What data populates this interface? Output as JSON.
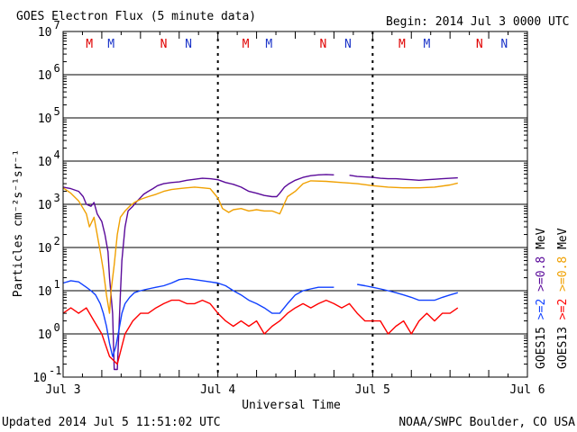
{
  "header": {
    "title": "GOES Electron Flux (5 minute data)",
    "begin": "Begin: 2014 Jul 3 0000 UTC"
  },
  "footer": {
    "updated": "Updated 2014 Jul  5 11:51:02 UTC",
    "credit": "NOAA/SWPC Boulder, CO USA"
  },
  "colors": {
    "goes15_08": "#5a0a9a",
    "goes13_08": "#f0a000",
    "goes15_2": "#1040ff",
    "goes13_2": "#ff0000",
    "marker_m": "#1a33c8",
    "marker_m_red": "#e00000"
  },
  "chart_data": {
    "type": "line",
    "title": "GOES Electron Flux (5 minute data)",
    "xlabel": "Universal Time",
    "ylabel": "Particles cm⁻²s⁻¹sr⁻¹",
    "x_unit": "days since 2014 Jul 3 0000 UTC",
    "xlim": [
      0,
      3
    ],
    "ylim": [
      0.1,
      10000000
    ],
    "yscale": "log",
    "x_ticks": [
      {
        "x": 0,
        "label": "Jul 3"
      },
      {
        "x": 1,
        "label": "Jul 4"
      },
      {
        "x": 2,
        "label": "Jul 5"
      },
      {
        "x": 3,
        "label": "Jul 6"
      }
    ],
    "y_ticks": [
      {
        "exp": -1,
        "label": "10",
        "sup": "-1"
      },
      {
        "exp": 0,
        "label": "10",
        "sup": "0"
      },
      {
        "exp": 1,
        "label": "10",
        "sup": "1"
      },
      {
        "exp": 2,
        "label": "10",
        "sup": "2"
      },
      {
        "exp": 3,
        "label": "10",
        "sup": "3"
      },
      {
        "exp": 4,
        "label": "10",
        "sup": "4"
      },
      {
        "exp": 5,
        "label": "10",
        "sup": "5"
      },
      {
        "exp": 6,
        "label": "10",
        "sup": "6"
      },
      {
        "exp": 7,
        "label": "10",
        "sup": "7"
      }
    ],
    "threshold": 1000,
    "markers": [
      {
        "x": 0.17,
        "label": "M",
        "color": "red"
      },
      {
        "x": 0.31,
        "label": "M",
        "color": "blue"
      },
      {
        "x": 0.65,
        "label": "N",
        "color": "red"
      },
      {
        "x": 0.81,
        "label": "N",
        "color": "blue"
      },
      {
        "x": 1.18,
        "label": "M",
        "color": "red"
      },
      {
        "x": 1.33,
        "label": "M",
        "color": "blue"
      },
      {
        "x": 1.68,
        "label": "N",
        "color": "red"
      },
      {
        "x": 1.84,
        "label": "N",
        "color": "blue"
      },
      {
        "x": 2.19,
        "label": "M",
        "color": "red"
      },
      {
        "x": 2.35,
        "label": "M",
        "color": "blue"
      },
      {
        "x": 2.69,
        "label": "N",
        "color": "red"
      },
      {
        "x": 2.85,
        "label": "N",
        "color": "blue"
      }
    ],
    "legend": [
      {
        "text": "GOES15",
        "color": "#000000"
      },
      {
        "text": ">=2",
        "color": "#1040ff"
      },
      {
        "text": ">=0.8",
        "color": "#5a0a9a"
      },
      {
        "text": "MeV",
        "color": "#000000"
      },
      {
        "text": "GOES13",
        "color": "#000000"
      },
      {
        "text": ">=2",
        "color": "#ff0000"
      },
      {
        "text": ">=0.8",
        "color": "#f0a000"
      },
      {
        "text": "MeV",
        "color": "#000000"
      }
    ],
    "series": [
      {
        "name": "GOES15 >=0.8 MeV",
        "color": "#5a0a9a",
        "x": [
          0.0,
          0.05,
          0.1,
          0.13,
          0.15,
          0.18,
          0.2,
          0.22,
          0.25,
          0.27,
          0.29,
          0.3,
          0.32,
          0.33,
          0.35,
          0.37,
          0.38,
          0.4,
          0.42,
          0.45,
          0.48,
          0.52,
          0.55,
          0.58,
          0.61,
          0.65,
          0.7,
          0.75,
          0.8,
          0.85,
          0.9,
          0.95,
          1.0,
          1.05,
          1.1,
          1.15,
          1.2,
          1.25,
          1.3,
          1.35,
          1.38,
          1.4,
          1.43,
          1.46,
          1.5,
          1.55,
          1.6,
          1.65,
          1.7,
          1.75
        ],
        "y": [
          2500,
          2300,
          2000,
          1500,
          1000,
          900,
          1100,
          600,
          400,
          200,
          80,
          20,
          3,
          0.15,
          0.15,
          8,
          50,
          300,
          700,
          900,
          1200,
          1700,
          2000,
          2300,
          2700,
          3000,
          3200,
          3300,
          3600,
          3800,
          4000,
          3900,
          3700,
          3200,
          2900,
          2500,
          2000,
          1800,
          1600,
          1500,
          1500,
          1800,
          2500,
          3000,
          3600,
          4200,
          4600,
          4800,
          4900,
          4800
        ]
      },
      {
        "name": "GOES15 >=0.8 MeV (late)",
        "color": "#5a0a9a",
        "x": [
          1.85,
          1.9,
          1.95,
          2.0,
          2.05,
          2.1,
          2.15,
          2.2,
          2.25,
          2.3,
          2.35,
          2.4,
          2.45,
          2.5,
          2.55
        ],
        "y": [
          4700,
          4400,
          4300,
          4200,
          4000,
          3900,
          3900,
          3800,
          3700,
          3600,
          3700,
          3800,
          3900,
          4000,
          4100
        ]
      },
      {
        "name": "GOES13 >=0.8 MeV",
        "color": "#f0a000",
        "x": [
          0.0,
          0.05,
          0.1,
          0.13,
          0.15,
          0.17,
          0.2,
          0.22,
          0.24,
          0.26,
          0.28,
          0.3,
          0.31,
          0.33,
          0.35,
          0.37,
          0.4,
          0.43,
          0.46,
          0.5,
          0.55,
          0.6,
          0.65,
          0.7,
          0.75,
          0.8,
          0.85,
          0.9,
          0.95,
          1.0,
          1.03,
          1.07,
          1.1,
          1.15,
          1.2,
          1.25,
          1.3,
          1.35,
          1.4,
          1.45,
          1.5,
          1.55,
          1.6,
          1.7,
          1.8,
          1.9,
          2.0,
          2.1,
          2.2,
          2.3,
          2.4,
          2.5,
          2.55
        ],
        "y": [
          2400,
          1800,
          1200,
          800,
          600,
          300,
          500,
          200,
          80,
          30,
          8,
          3,
          10,
          40,
          200,
          500,
          700,
          900,
          1100,
          1300,
          1500,
          1700,
          2000,
          2200,
          2300,
          2400,
          2500,
          2400,
          2300,
          1400,
          800,
          650,
          750,
          800,
          700,
          750,
          700,
          700,
          600,
          1500,
          2000,
          3000,
          3500,
          3400,
          3200,
          3000,
          2700,
          2500,
          2400,
          2400,
          2500,
          2800,
          3100
        ]
      },
      {
        "name": "GOES15 >=2 MeV",
        "color": "#1040ff",
        "x": [
          0.0,
          0.05,
          0.1,
          0.15,
          0.18,
          0.21,
          0.24,
          0.26,
          0.28,
          0.3,
          0.32,
          0.34,
          0.36,
          0.38,
          0.4,
          0.43,
          0.46,
          0.5,
          0.55,
          0.6,
          0.65,
          0.7,
          0.75,
          0.8,
          0.85,
          0.9,
          0.95,
          1.0,
          1.05,
          1.1,
          1.15,
          1.2,
          1.25,
          1.3,
          1.35,
          1.4,
          1.45,
          1.5,
          1.55,
          1.6,
          1.65,
          1.7,
          1.75
        ],
        "y": [
          15,
          17,
          16,
          12,
          10,
          8,
          5,
          3,
          1.5,
          0.6,
          0.3,
          0.5,
          1.2,
          3,
          5,
          7,
          9,
          10,
          11,
          12,
          13,
          15,
          18,
          19,
          18,
          17,
          16,
          15,
          13,
          10,
          8,
          6,
          5,
          4,
          3,
          3,
          5,
          8,
          10,
          11,
          12,
          12,
          12
        ]
      },
      {
        "name": "GOES15 >=2 MeV (late)",
        "color": "#1040ff",
        "x": [
          1.9,
          1.95,
          2.0,
          2.05,
          2.1,
          2.15,
          2.2,
          2.25,
          2.3,
          2.35,
          2.4,
          2.45,
          2.5,
          2.55
        ],
        "y": [
          14,
          13,
          12,
          11,
          10,
          9,
          8,
          7,
          6,
          6,
          6,
          7,
          8,
          9
        ]
      },
      {
        "name": "GOES13 >=2 MeV",
        "color": "#ff0000",
        "x": [
          0.0,
          0.05,
          0.1,
          0.15,
          0.2,
          0.25,
          0.3,
          0.35,
          0.4,
          0.45,
          0.5,
          0.55,
          0.6,
          0.65,
          0.7,
          0.75,
          0.8,
          0.85,
          0.9,
          0.95,
          1.0,
          1.05,
          1.1,
          1.15,
          1.2,
          1.25,
          1.3,
          1.35,
          1.4,
          1.45,
          1.5,
          1.55,
          1.6,
          1.65,
          1.7,
          1.75,
          1.8,
          1.85,
          1.9,
          1.95,
          2.0,
          2.05,
          2.1,
          2.15,
          2.2,
          2.25,
          2.3,
          2.35,
          2.4,
          2.45,
          2.5,
          2.55
        ],
        "y": [
          3,
          4,
          3,
          4,
          2,
          1,
          0.3,
          0.2,
          1,
          2,
          3,
          3,
          4,
          5,
          6,
          6,
          5,
          5,
          6,
          5,
          3,
          2,
          1.5,
          2,
          1.5,
          2,
          1,
          1.5,
          2,
          3,
          4,
          5,
          4,
          5,
          6,
          5,
          4,
          5,
          3,
          2,
          2,
          2,
          1,
          1.5,
          2,
          1,
          2,
          3,
          2,
          3,
          3,
          4
        ]
      }
    ]
  }
}
